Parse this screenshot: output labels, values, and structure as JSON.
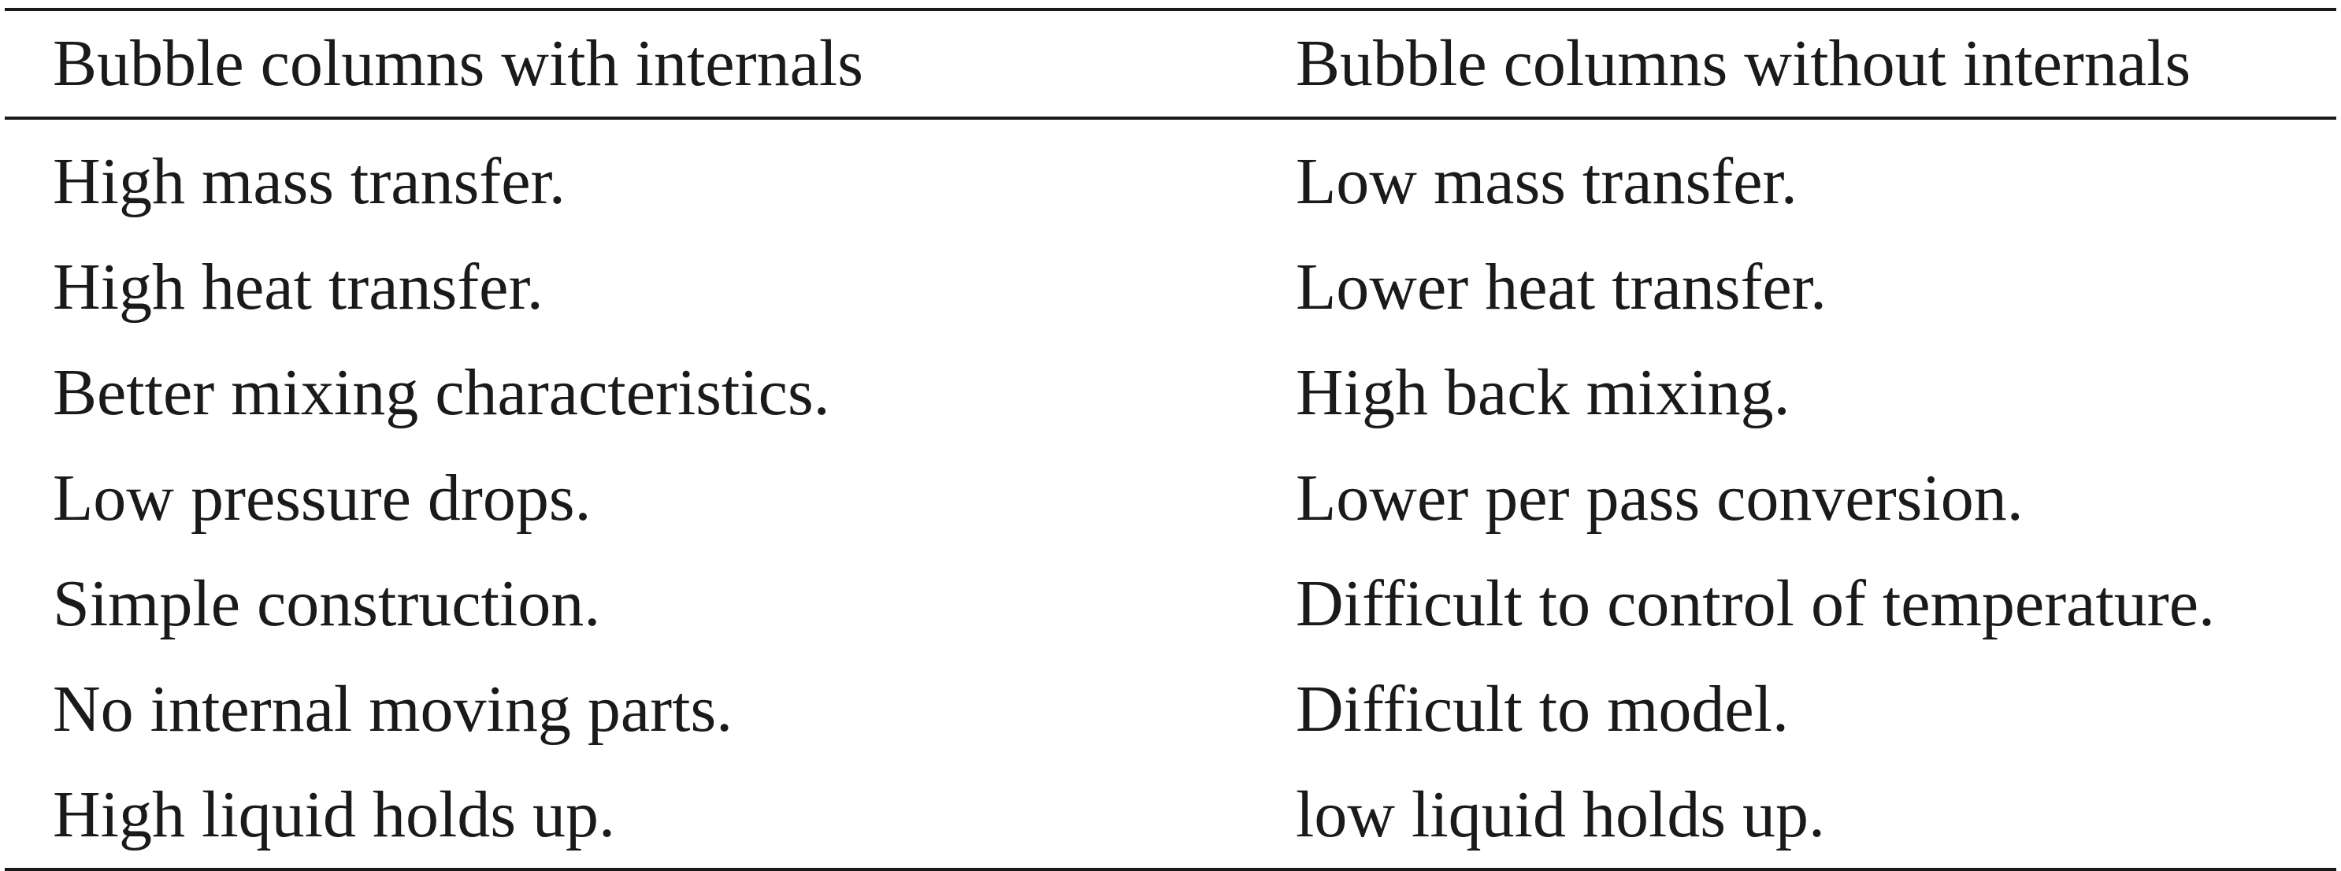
{
  "table": {
    "headers": [
      "Bubble columns with internals",
      "Bubble columns without internals"
    ],
    "rows": [
      [
        "High mass transfer.",
        "Low mass transfer."
      ],
      [
        "High heat transfer.",
        "Lower heat transfer."
      ],
      [
        "Better mixing characteristics.",
        "High back mixing."
      ],
      [
        "Low pressure drops.",
        "Lower per pass conversion."
      ],
      [
        "Simple construction.",
        "Difficult to control of temperature."
      ],
      [
        "No internal moving parts.",
        "Difficult to model."
      ],
      [
        "High liquid holds up.",
        "low liquid holds up."
      ]
    ]
  }
}
